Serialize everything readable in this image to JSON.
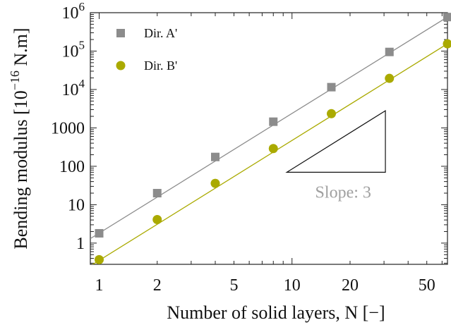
{
  "chart_data": {
    "type": "scatter",
    "xlabel": "Number of solid layers, N [−]",
    "ylabel": "Bending modulus [10",
    "ylabel_exp": "−16",
    "ylabel_suffix": " N.m]",
    "xscale": "log",
    "yscale": "log",
    "xlim": [
      0.9,
      64
    ],
    "ylim": [
      0.28,
      1000000
    ],
    "grid": false,
    "legend_position": "top-left",
    "x_ticks": [
      {
        "value": 1,
        "label": "1"
      },
      {
        "value": 2,
        "label": "2"
      },
      {
        "value": 5,
        "label": "5"
      },
      {
        "value": 10,
        "label": "10"
      },
      {
        "value": 20,
        "label": "20"
      },
      {
        "value": 50,
        "label": "50"
      }
    ],
    "y_ticks": [
      {
        "value": 1,
        "label": "1"
      },
      {
        "value": 10,
        "label": "10"
      },
      {
        "value": 100,
        "label": "100"
      },
      {
        "value": 1000,
        "label": "1000"
      },
      {
        "value": 10000,
        "label": "10",
        "exp": "4"
      },
      {
        "value": 100000,
        "label": "10",
        "exp": "5"
      },
      {
        "value": 1000000,
        "label": "10",
        "exp": "6"
      }
    ],
    "series": [
      {
        "name": "Dir. A'",
        "marker": "square",
        "color": "#8c8c8c",
        "x": [
          1,
          2,
          4,
          8,
          16,
          32,
          64
        ],
        "y": [
          1.8,
          20,
          175,
          1450,
          11500,
          95000,
          770000
        ],
        "fit_line": {
          "x": [
            0.9,
            64
          ],
          "y": [
            1.31,
            773000
          ]
        }
      },
      {
        "name": "Dir. B'",
        "marker": "circle",
        "color": "#aaaa00",
        "x": [
          1,
          2,
          4,
          8,
          16,
          32,
          64
        ],
        "y": [
          0.37,
          4.1,
          36,
          290,
          2350,
          19500,
          155000
        ],
        "fit_line": {
          "x": [
            0.9,
            64
          ],
          "y": [
            0.255,
            155000
          ]
        }
      }
    ],
    "annotation": {
      "text": "Slope: 3",
      "triangle": {
        "x1": 9.4,
        "x2": 30.5,
        "y_base": 70,
        "y_top": 2800
      }
    }
  }
}
